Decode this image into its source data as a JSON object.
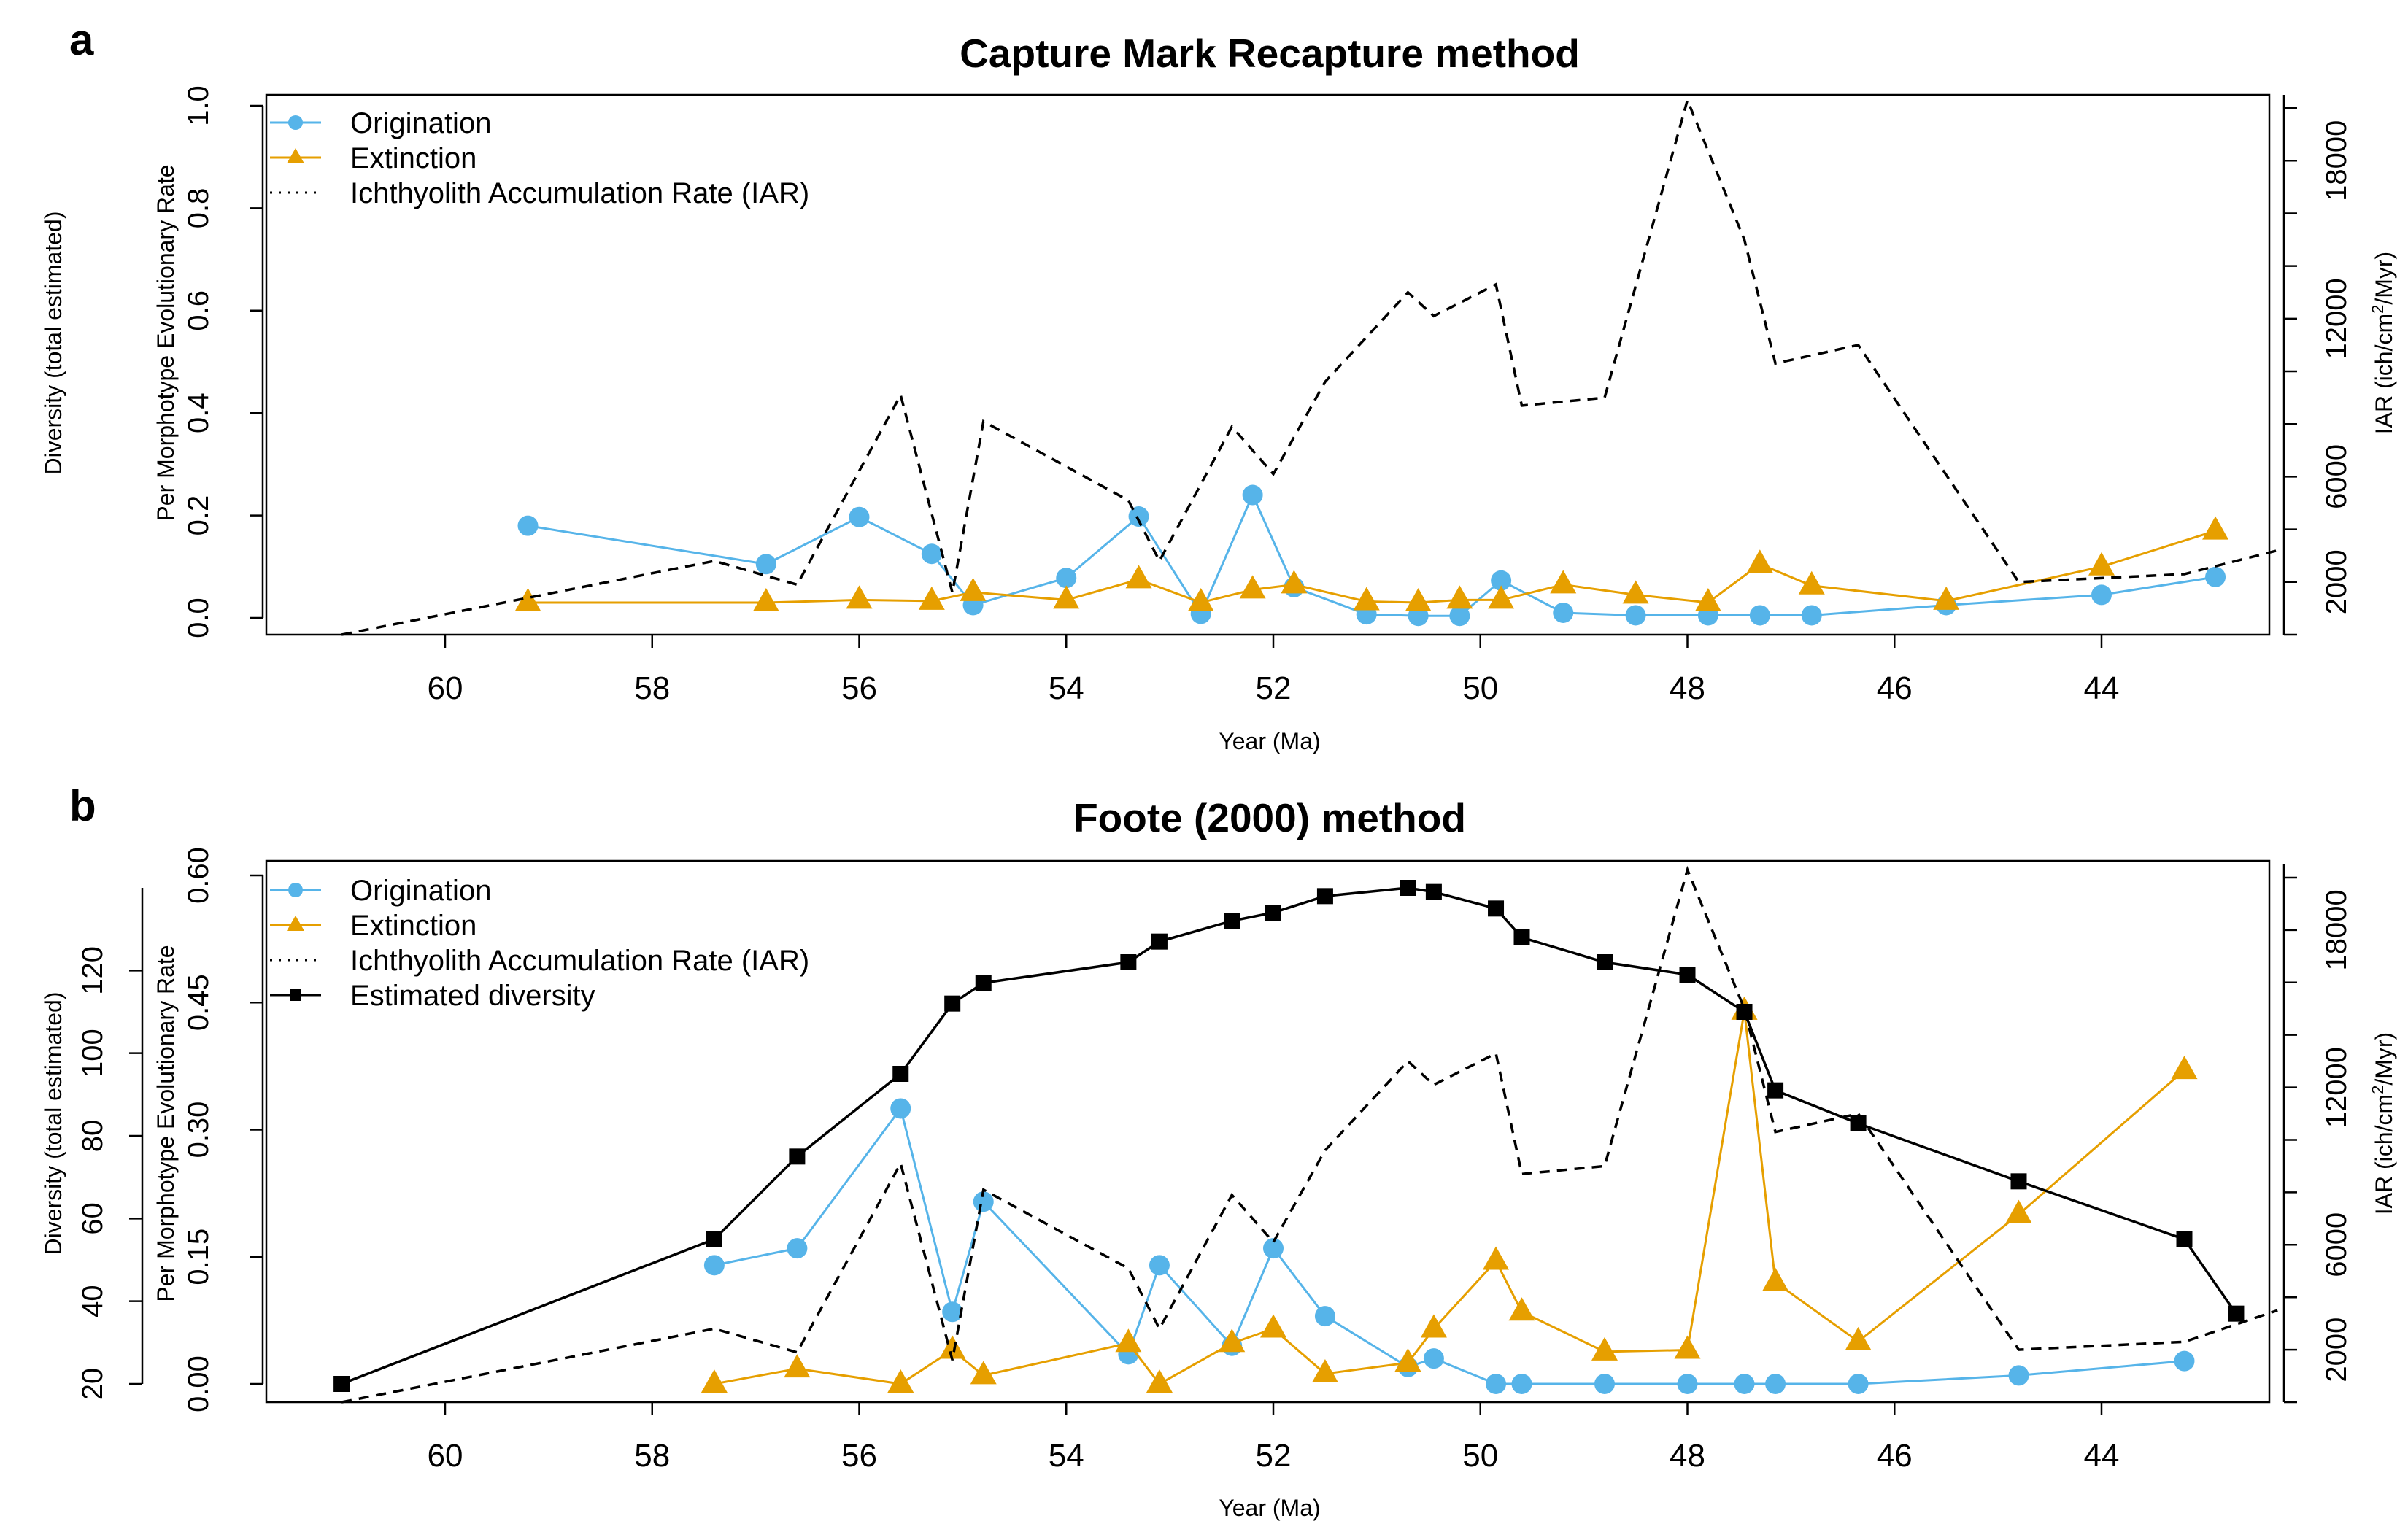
{
  "panels": [
    {
      "letter": "a",
      "title": "Capture Mark Recapture method"
    },
    {
      "letter": "b",
      "title": "Foote (2000) method"
    }
  ],
  "colors": {
    "origination": "#56b4e9",
    "extinction": "#e69f00",
    "iar": "#000000",
    "diversity": "#000000"
  },
  "chart_data": [
    {
      "type": "line",
      "title": "Capture Mark Recapture method",
      "xlabel": "Year (Ma)",
      "ylabel_rate": "Per Morphotype Evolutionary Rate",
      "ylabel_diversity": "Diversity (total estimated)",
      "ylabel_iar": "IAR (ich/cm²/Myr)",
      "xlim": [
        62,
        41.4
      ],
      "xticks": [
        60,
        58,
        56,
        54,
        52,
        50,
        48,
        46,
        44
      ],
      "rate_ylim": [
        0,
        1.0
      ],
      "rate_yticks": [
        "0.0",
        "0.2",
        "0.4",
        "0.6",
        "0.8",
        "1.0"
      ],
      "iar_ylim": [
        0,
        20500
      ],
      "iar_yticks": [
        2000,
        6000,
        12000,
        18000
      ],
      "legend": [
        "Origination",
        "Extinction",
        "Ichthyolith Accumulation Rate (IAR)"
      ],
      "legend_position": "top-left",
      "series": [
        {
          "name": "Origination",
          "x": [
            59.2,
            56.9,
            56.0,
            55.3,
            54.9,
            54.0,
            53.3,
            52.7,
            52.2,
            51.8,
            51.1,
            50.6,
            50.2,
            49.8,
            49.2,
            48.5,
            47.8,
            47.3,
            46.8,
            45.5,
            44.0,
            42.9
          ],
          "y": [
            0.18,
            0.105,
            0.197,
            0.125,
            0.025,
            0.078,
            0.198,
            0.008,
            0.24,
            0.06,
            0.007,
            0.004,
            0.004,
            0.073,
            0.01,
            0.005,
            0.005,
            0.005,
            0.005,
            0.025,
            0.045,
            0.08
          ]
        },
        {
          "name": "Extinction",
          "x": [
            59.2,
            56.9,
            56.0,
            55.3,
            54.9,
            54.0,
            53.3,
            52.7,
            52.2,
            51.8,
            51.1,
            50.6,
            50.2,
            49.8,
            49.2,
            48.5,
            47.8,
            47.3,
            46.8,
            45.5,
            44.0,
            42.9
          ],
          "y": [
            0.03,
            0.03,
            0.035,
            0.033,
            0.05,
            0.035,
            0.075,
            0.03,
            0.055,
            0.065,
            0.032,
            0.03,
            0.035,
            0.035,
            0.065,
            0.045,
            0.03,
            0.105,
            0.063,
            0.033,
            0.1,
            0.17
          ]
        },
        {
          "name": "Ichthyolith Accumulation Rate (IAR)",
          "x": [
            61.0,
            57.4,
            56.6,
            55.6,
            55.1,
            54.8,
            53.4,
            53.1,
            52.4,
            52.0,
            51.5,
            50.7,
            50.45,
            49.85,
            49.6,
            48.8,
            48.0,
            47.45,
            47.15,
            46.35,
            44.8,
            43.2,
            42.3
          ],
          "y": [
            0,
            2800,
            1900,
            9100,
            1600,
            8100,
            5100,
            2800,
            7900,
            6100,
            9600,
            13000,
            12100,
            13300,
            8700,
            9000,
            20300,
            15000,
            10300,
            11000,
            2000,
            2300,
            3200
          ]
        }
      ]
    },
    {
      "type": "line",
      "title": "Foote (2000) method",
      "xlabel": "Year (Ma)",
      "ylabel_rate": "Per Morphotype Evolutionary Rate",
      "ylabel_diversity": "Diversity (total estimated)",
      "ylabel_iar": "IAR (ich/cm²/Myr)",
      "xlim": [
        62,
        41.4
      ],
      "xticks": [
        60,
        58,
        56,
        54,
        52,
        50,
        48,
        46,
        44
      ],
      "rate_ylim": [
        0,
        0.6
      ],
      "rate_yticks": [
        "0.00",
        "0.15",
        "0.30",
        "0.45",
        "0.60"
      ],
      "diversity_ylim": [
        20,
        140
      ],
      "diversity_yticks": [
        20,
        40,
        60,
        80,
        100,
        120
      ],
      "iar_ylim": [
        0,
        20500
      ],
      "iar_yticks": [
        2000,
        6000,
        12000,
        18000
      ],
      "legend": [
        "Origination",
        "Extinction",
        "Ichthyolith Accumulation Rate (IAR)",
        "Estimated diversity"
      ],
      "legend_position": "top-left",
      "series": [
        {
          "name": "Origination",
          "x": [
            57.4,
            56.6,
            55.6,
            55.1,
            54.8,
            53.4,
            53.1,
            52.4,
            52.0,
            51.5,
            50.7,
            50.45,
            49.85,
            49.6,
            48.8,
            48.0,
            47.45,
            47.15,
            46.35,
            44.8,
            43.2
          ],
          "y": [
            0.14,
            0.16,
            0.325,
            0.085,
            0.215,
            0.035,
            0.14,
            0.045,
            0.16,
            0.08,
            0.02,
            0.03,
            0.0,
            0.0,
            0.0,
            0.0,
            0.0,
            0.0,
            0.0,
            0.01,
            0.027
          ]
        },
        {
          "name": "Extinction",
          "x": [
            57.4,
            56.6,
            55.6,
            55.1,
            54.8,
            53.4,
            53.1,
            52.4,
            52.0,
            51.5,
            50.7,
            50.45,
            49.85,
            49.6,
            48.8,
            48.0,
            47.45,
            47.15,
            46.35,
            44.8,
            43.2
          ],
          "y": [
            0.0,
            0.018,
            0.0,
            0.04,
            0.01,
            0.048,
            0.0,
            0.048,
            0.065,
            0.012,
            0.025,
            0.065,
            0.145,
            0.085,
            0.038,
            0.04,
            0.44,
            0.12,
            0.05,
            0.2,
            0.37
          ]
        },
        {
          "name": "Ichthyolith Accumulation Rate (IAR)",
          "x": [
            61.0,
            57.4,
            56.6,
            55.6,
            55.1,
            54.8,
            53.4,
            53.1,
            52.4,
            52.0,
            51.5,
            50.7,
            50.45,
            49.85,
            49.6,
            48.8,
            48.0,
            47.45,
            47.15,
            46.35,
            44.8,
            43.2,
            42.3
          ],
          "y": [
            0,
            2800,
            1900,
            9100,
            1600,
            8100,
            5100,
            2800,
            7900,
            6100,
            9600,
            13000,
            12100,
            13300,
            8700,
            9000,
            20300,
            15000,
            10300,
            11000,
            2000,
            2300,
            3500
          ]
        },
        {
          "name": "Estimated diversity",
          "x": [
            61.0,
            57.4,
            56.6,
            55.6,
            55.1,
            54.8,
            53.4,
            53.1,
            52.4,
            52.0,
            51.5,
            50.7,
            50.45,
            49.85,
            49.6,
            48.8,
            48.0,
            47.45,
            47.15,
            46.35,
            44.8,
            43.2,
            42.7
          ],
          "y": [
            20,
            55,
            75,
            95,
            112,
            117,
            122,
            127,
            132,
            134,
            138,
            140,
            139,
            135,
            128,
            122,
            119,
            110,
            91,
            83,
            69,
            55,
            37
          ]
        }
      ]
    }
  ]
}
